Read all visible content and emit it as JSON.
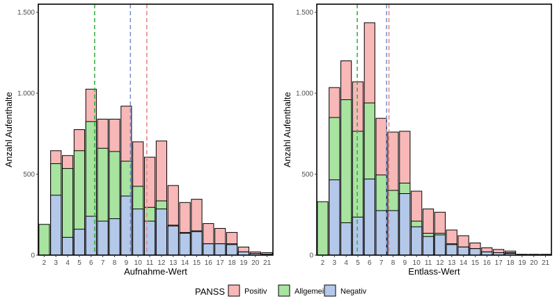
{
  "legend": {
    "title": "PANSS",
    "entries": [
      {
        "key": "positiv",
        "label": "Positiv",
        "color": "#f8b8b8"
      },
      {
        "key": "allgemein",
        "label": "Allgemein",
        "color": "#a8e4a0"
      },
      {
        "key": "negativ",
        "label": "Negativ",
        "color": "#b4c8ea"
      }
    ]
  },
  "chart_data": [
    {
      "type": "bar",
      "stacking": "overlapping",
      "xlabel": "Aufnahme-Wert",
      "ylabel": "Anzahl Aufenthalte",
      "ylim": [
        0,
        1550
      ],
      "y_ticks": [
        0,
        500,
        1000,
        1500
      ],
      "y_tick_labels": [
        "0",
        "500",
        "1.000",
        "1.500"
      ],
      "x_ticks": [
        2,
        3,
        4,
        5,
        6,
        7,
        8,
        9,
        10,
        11,
        12,
        13,
        14,
        15,
        16,
        17,
        18,
        19,
        20,
        21
      ],
      "xlim": [
        1.5,
        21.5
      ],
      "series": [
        {
          "name": "Positiv",
          "color": "#f8b8b8",
          "points": [
            [
              3,
              645
            ],
            [
              4,
              615
            ],
            [
              5,
              775
            ],
            [
              6,
              1025
            ],
            [
              7,
              840
            ],
            [
              8,
              840
            ],
            [
              9,
              920
            ],
            [
              10,
              700
            ],
            [
              11,
              605
            ],
            [
              12,
              705
            ],
            [
              13,
              430
            ],
            [
              14,
              325
            ],
            [
              15,
              345
            ],
            [
              16,
              195
            ],
            [
              17,
              165
            ],
            [
              18,
              140
            ],
            [
              19,
              50
            ],
            [
              20,
              20
            ],
            [
              21,
              15
            ]
          ]
        },
        {
          "name": "Allgemein",
          "color": "#a8e4a0",
          "points": [
            [
              2,
              190
            ],
            [
              3,
              565
            ],
            [
              4,
              535
            ],
            [
              5,
              645
            ],
            [
              6,
              825
            ],
            [
              7,
              660
            ],
            [
              8,
              640
            ],
            [
              9,
              580
            ],
            [
              10,
              425
            ],
            [
              11,
              295
            ],
            [
              12,
              335
            ],
            [
              13,
              185
            ],
            [
              14,
              140
            ],
            [
              15,
              150
            ],
            [
              16,
              70
            ],
            [
              17,
              70
            ],
            [
              18,
              70
            ],
            [
              19,
              20
            ],
            [
              20,
              10
            ],
            [
              21,
              5
            ]
          ]
        },
        {
          "name": "Negativ",
          "color": "#b4c8ea",
          "points": [
            [
              3,
              370
            ],
            [
              4,
              110
            ],
            [
              5,
              160
            ],
            [
              6,
              240
            ],
            [
              7,
              210
            ],
            [
              8,
              225
            ],
            [
              9,
              365
            ],
            [
              10,
              285
            ],
            [
              11,
              210
            ],
            [
              12,
              285
            ],
            [
              13,
              180
            ],
            [
              14,
              135
            ],
            [
              15,
              145
            ],
            [
              16,
              70
            ],
            [
              17,
              70
            ],
            [
              18,
              65
            ],
            [
              19,
              20
            ],
            [
              20,
              10
            ],
            [
              21,
              5
            ]
          ]
        }
      ],
      "reference_lines": [
        {
          "series": "Allgemein",
          "x": 6.3,
          "color": "#3cb043"
        },
        {
          "series": "Negativ",
          "x": 9.35,
          "color": "#7b93d0"
        },
        {
          "series": "Positiv",
          "x": 10.75,
          "color": "#e8888a"
        }
      ]
    },
    {
      "type": "bar",
      "stacking": "overlapping",
      "xlabel": "Entlass-Wert",
      "ylabel": "Anzahl Aufenthalte",
      "ylim": [
        0,
        1550
      ],
      "y_ticks": [
        0,
        500,
        1000,
        1500
      ],
      "y_tick_labels": [
        "0",
        "500",
        "1.000",
        "1.500"
      ],
      "x_ticks": [
        2,
        3,
        4,
        5,
        6,
        7,
        8,
        9,
        10,
        11,
        12,
        13,
        14,
        15,
        16,
        17,
        18,
        19,
        20,
        21
      ],
      "xlim": [
        1.5,
        21.5
      ],
      "series": [
        {
          "name": "Positiv",
          "color": "#f8b8b8",
          "points": [
            [
              3,
              1035
            ],
            [
              4,
              1200
            ],
            [
              5,
              1070
            ],
            [
              6,
              1435
            ],
            [
              7,
              845
            ],
            [
              8,
              760
            ],
            [
              9,
              765
            ],
            [
              10,
              395
            ],
            [
              11,
              285
            ],
            [
              12,
              265
            ],
            [
              13,
              155
            ],
            [
              14,
              120
            ],
            [
              15,
              75
            ],
            [
              16,
              45
            ],
            [
              17,
              35
            ],
            [
              18,
              25
            ],
            [
              19,
              5
            ],
            [
              20,
              5
            ],
            [
              21,
              5
            ]
          ]
        },
        {
          "name": "Allgemein",
          "color": "#a8e4a0",
          "points": [
            [
              2,
              330
            ],
            [
              3,
              850
            ],
            [
              4,
              960
            ],
            [
              5,
              765
            ],
            [
              6,
              940
            ],
            [
              7,
              495
            ],
            [
              8,
              400
            ],
            [
              9,
              445
            ],
            [
              10,
              210
            ],
            [
              11,
              135
            ],
            [
              12,
              135
            ],
            [
              13,
              70
            ],
            [
              14,
              50
            ],
            [
              15,
              40
            ],
            [
              16,
              20
            ],
            [
              17,
              15
            ],
            [
              18,
              15
            ],
            [
              19,
              3
            ],
            [
              20,
              2
            ],
            [
              21,
              1
            ]
          ]
        },
        {
          "name": "Negativ",
          "color": "#b4c8ea",
          "points": [
            [
              3,
              465
            ],
            [
              4,
              200
            ],
            [
              5,
              235
            ],
            [
              6,
              470
            ],
            [
              7,
              275
            ],
            [
              8,
              275
            ],
            [
              9,
              380
            ],
            [
              10,
              175
            ],
            [
              11,
              115
            ],
            [
              12,
              125
            ],
            [
              13,
              65
            ],
            [
              14,
              50
            ],
            [
              15,
              40
            ],
            [
              16,
              20
            ],
            [
              17,
              15
            ],
            [
              18,
              10
            ],
            [
              19,
              3
            ],
            [
              20,
              2
            ],
            [
              21,
              1
            ]
          ]
        }
      ],
      "reference_lines": [
        {
          "series": "Allgemein",
          "x": 4.95,
          "color": "#3cb043"
        },
        {
          "series": "Negativ",
          "x": 7.45,
          "color": "#7b93d0"
        },
        {
          "series": "Positiv",
          "x": 7.65,
          "color": "#e8888a"
        }
      ]
    }
  ]
}
